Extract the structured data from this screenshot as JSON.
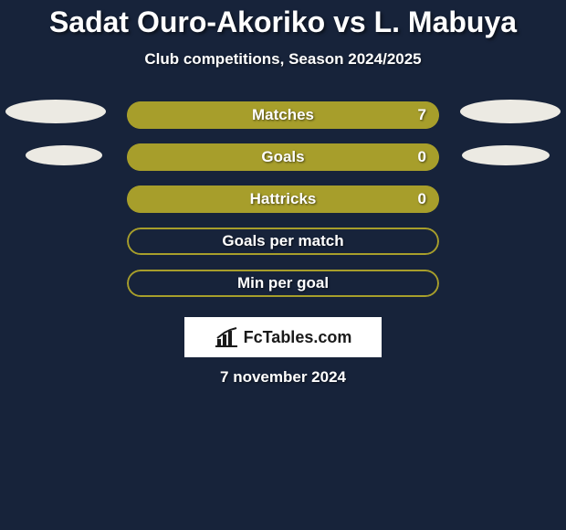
{
  "background_color": "#17233a",
  "title": {
    "text": "Sadat Ouro-Akoriko vs L. Mabuya",
    "color": "#ffffff",
    "fontsize": 32
  },
  "subtitle": {
    "text": "Club competitions, Season 2024/2025",
    "color": "#ffffff",
    "fontsize": 17
  },
  "accent_color": "#a79e2b",
  "pill_color": "#eceae3",
  "text_on_bar_color": "#ffffff",
  "bar_label_fontsize": 17,
  "bars": [
    {
      "label": "Matches",
      "value": "7",
      "fill_pct": 100,
      "left_pill": true,
      "right_pill": true
    },
    {
      "label": "Goals",
      "value": "0",
      "fill_pct": 100,
      "left_pill": true,
      "right_pill": true
    },
    {
      "label": "Hattricks",
      "value": "0",
      "fill_pct": 100,
      "left_pill": false,
      "right_pill": false
    },
    {
      "label": "Goals per match",
      "value": "",
      "fill_pct": 0,
      "left_pill": false,
      "right_pill": false
    },
    {
      "label": "Min per goal",
      "value": "",
      "fill_pct": 0,
      "left_pill": false,
      "right_pill": false
    }
  ],
  "brand": {
    "text": "FcTables.com",
    "bg_color": "#ffffff",
    "text_color": "#1a1a1a",
    "fontsize": 18
  },
  "date": {
    "text": "7 november 2024",
    "color": "#ffffff",
    "fontsize": 17
  }
}
